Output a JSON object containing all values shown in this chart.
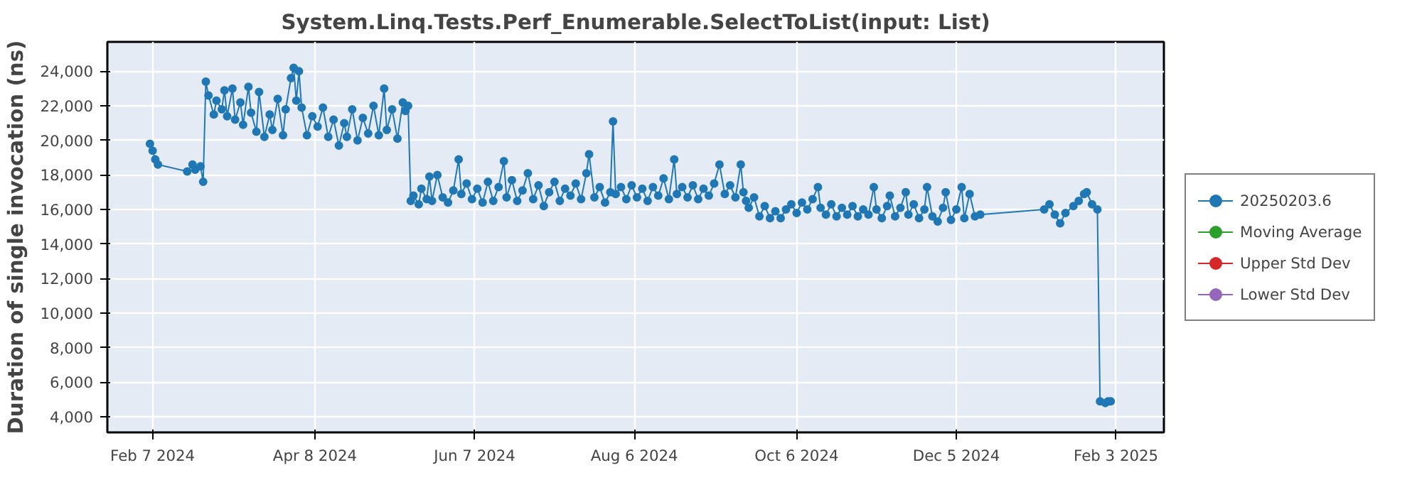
{
  "chart_data": {
    "type": "line",
    "title": "System.Linq.Tests.Perf_Enumerable.SelectToList(input: List)",
    "ylabel": "Duration of single invocation (ns)",
    "xlim": [
      "2024-01-21",
      "2025-02-21"
    ],
    "xticks": [
      {
        "value": "2024-02-07",
        "label": "Feb 7 2024"
      },
      {
        "value": "2024-04-08",
        "label": "Apr 8 2024"
      },
      {
        "value": "2024-06-07",
        "label": "Jun 7 2024"
      },
      {
        "value": "2024-08-06",
        "label": "Aug 6 2024"
      },
      {
        "value": "2024-10-06",
        "label": "Oct 6 2024"
      },
      {
        "value": "2024-12-05",
        "label": "Dec 5 2024"
      },
      {
        "value": "2025-02-03",
        "label": "Feb 3 2025"
      }
    ],
    "ylim": [
      3100,
      25700
    ],
    "yticks": [
      {
        "value": 4000,
        "label": "4,000"
      },
      {
        "value": 6000,
        "label": "6,000"
      },
      {
        "value": 8000,
        "label": "8,000"
      },
      {
        "value": 10000,
        "label": "10,000"
      },
      {
        "value": 12000,
        "label": "12,000"
      },
      {
        "value": 14000,
        "label": "14,000"
      },
      {
        "value": 16000,
        "label": "16,000"
      },
      {
        "value": 18000,
        "label": "18,000"
      },
      {
        "value": 20000,
        "label": "20,000"
      },
      {
        "value": 22000,
        "label": "22,000"
      },
      {
        "value": 24000,
        "label": "24,000"
      }
    ],
    "grid": true,
    "legend": "right",
    "marker": "circle",
    "line_style": "solid",
    "series": [
      {
        "name": "20250203.6",
        "color": "#1f77b4",
        "x": [
          "2024-02-06",
          "2024-02-07",
          "2024-02-08",
          "2024-02-09",
          "2024-02-20",
          "2024-02-22",
          "2024-02-23",
          "2024-02-25",
          "2024-02-26",
          "2024-02-27",
          "2024-02-28",
          "2024-03-01",
          "2024-03-02",
          "2024-03-04",
          "2024-03-05",
          "2024-03-06",
          "2024-03-08",
          "2024-03-09",
          "2024-03-11",
          "2024-03-12",
          "2024-03-14",
          "2024-03-15",
          "2024-03-17",
          "2024-03-18",
          "2024-03-20",
          "2024-03-22",
          "2024-03-23",
          "2024-03-25",
          "2024-03-27",
          "2024-03-28",
          "2024-03-30",
          "2024-03-31",
          "2024-04-01",
          "2024-04-02",
          "2024-04-03",
          "2024-04-05",
          "2024-04-07",
          "2024-04-09",
          "2024-04-11",
          "2024-04-13",
          "2024-04-15",
          "2024-04-17",
          "2024-04-19",
          "2024-04-20",
          "2024-04-22",
          "2024-04-24",
          "2024-04-26",
          "2024-04-28",
          "2024-04-30",
          "2024-05-02",
          "2024-05-04",
          "2024-05-05",
          "2024-05-07",
          "2024-05-09",
          "2024-05-11",
          "2024-05-12",
          "2024-05-13",
          "2024-05-14",
          "2024-05-15",
          "2024-05-17",
          "2024-05-18",
          "2024-05-20",
          "2024-05-21",
          "2024-05-22",
          "2024-05-24",
          "2024-05-26",
          "2024-05-28",
          "2024-05-30",
          "2024-06-01",
          "2024-06-02",
          "2024-06-04",
          "2024-06-06",
          "2024-06-08",
          "2024-06-10",
          "2024-06-12",
          "2024-06-14",
          "2024-06-16",
          "2024-06-18",
          "2024-06-19",
          "2024-06-21",
          "2024-06-23",
          "2024-06-25",
          "2024-06-27",
          "2024-06-29",
          "2024-07-01",
          "2024-07-03",
          "2024-07-05",
          "2024-07-07",
          "2024-07-09",
          "2024-07-11",
          "2024-07-13",
          "2024-07-15",
          "2024-07-17",
          "2024-07-19",
          "2024-07-20",
          "2024-07-22",
          "2024-07-24",
          "2024-07-26",
          "2024-07-28",
          "2024-07-29",
          "2024-07-30",
          "2024-08-01",
          "2024-08-03",
          "2024-08-05",
          "2024-08-07",
          "2024-08-09",
          "2024-08-11",
          "2024-08-13",
          "2024-08-15",
          "2024-08-17",
          "2024-08-19",
          "2024-08-21",
          "2024-08-22",
          "2024-08-24",
          "2024-08-26",
          "2024-08-28",
          "2024-08-30",
          "2024-09-01",
          "2024-09-03",
          "2024-09-05",
          "2024-09-07",
          "2024-09-09",
          "2024-09-11",
          "2024-09-13",
          "2024-09-15",
          "2024-09-16",
          "2024-09-17",
          "2024-09-18",
          "2024-09-20",
          "2024-09-22",
          "2024-09-24",
          "2024-09-26",
          "2024-09-28",
          "2024-09-30",
          "2024-10-02",
          "2024-10-04",
          "2024-10-06",
          "2024-10-08",
          "2024-10-10",
          "2024-10-12",
          "2024-10-14",
          "2024-10-15",
          "2024-10-17",
          "2024-10-19",
          "2024-10-21",
          "2024-10-23",
          "2024-10-25",
          "2024-10-27",
          "2024-10-29",
          "2024-10-31",
          "2024-11-02",
          "2024-11-04",
          "2024-11-05",
          "2024-11-07",
          "2024-11-09",
          "2024-11-10",
          "2024-11-12",
          "2024-11-14",
          "2024-11-16",
          "2024-11-17",
          "2024-11-19",
          "2024-11-21",
          "2024-11-23",
          "2024-11-24",
          "2024-11-26",
          "2024-11-28",
          "2024-11-30",
          "2024-12-01",
          "2024-12-03",
          "2024-12-05",
          "2024-12-07",
          "2024-12-08",
          "2024-12-10",
          "2024-12-12",
          "2024-12-14",
          "2025-01-07",
          "2025-01-09",
          "2025-01-11",
          "2025-01-13",
          "2025-01-15",
          "2025-01-18",
          "2025-01-20",
          "2025-01-22",
          "2025-01-23",
          "2025-01-25",
          "2025-01-27",
          "2025-01-28",
          "2025-01-30",
          "2025-01-31",
          "2025-02-01"
        ],
        "values": [
          19800,
          19400,
          18900,
          18600,
          18200,
          18600,
          18300,
          18500,
          17600,
          23400,
          22600,
          21500,
          22300,
          21800,
          22900,
          21400,
          23000,
          21200,
          22200,
          20900,
          23100,
          21600,
          20500,
          22800,
          20200,
          21500,
          20600,
          22400,
          20300,
          21800,
          23600,
          24200,
          22300,
          24000,
          21900,
          20300,
          21400,
          20800,
          21900,
          20200,
          21200,
          19700,
          21000,
          20200,
          21800,
          20000,
          21300,
          20400,
          22000,
          20300,
          23000,
          20600,
          21800,
          20100,
          22200,
          21700,
          22000,
          16500,
          16800,
          16300,
          17200,
          16600,
          17900,
          16500,
          18000,
          16700,
          16400,
          17100,
          18900,
          16900,
          17500,
          16600,
          17200,
          16400,
          17600,
          16500,
          17300,
          18800,
          16700,
          17700,
          16500,
          17100,
          18100,
          16600,
          17400,
          16200,
          17000,
          17600,
          16500,
          17200,
          16800,
          17500,
          16600,
          18100,
          19200,
          16700,
          17300,
          16400,
          17000,
          21100,
          16900,
          17300,
          16600,
          17400,
          16700,
          17200,
          16500,
          17300,
          16800,
          17800,
          16600,
          18900,
          16900,
          17300,
          16700,
          17400,
          16600,
          17200,
          16800,
          17500,
          18600,
          16900,
          17400,
          16700,
          18600,
          17000,
          16500,
          16100,
          16700,
          15600,
          16200,
          15500,
          15900,
          15500,
          16000,
          16300,
          15800,
          16400,
          16000,
          16600,
          17300,
          16100,
          15700,
          16300,
          15600,
          16100,
          15700,
          16200,
          15600,
          16000,
          15700,
          17300,
          16000,
          15500,
          16200,
          16800,
          15600,
          16100,
          17000,
          15700,
          16300,
          15500,
          16000,
          17300,
          15600,
          15300,
          16100,
          17000,
          15400,
          16000,
          17300,
          15500,
          16900,
          15600,
          15700,
          16000,
          16300,
          15700,
          15200,
          15800,
          16200,
          16500,
          16900,
          17000,
          16300,
          16000,
          4900,
          4800,
          4900,
          4900
        ]
      },
      {
        "name": "Moving Average",
        "color": "#2ca02c"
      },
      {
        "name": "Upper Std Dev",
        "color": "#d62728"
      },
      {
        "name": "Lower Std Dev",
        "color": "#9467bd"
      }
    ]
  }
}
